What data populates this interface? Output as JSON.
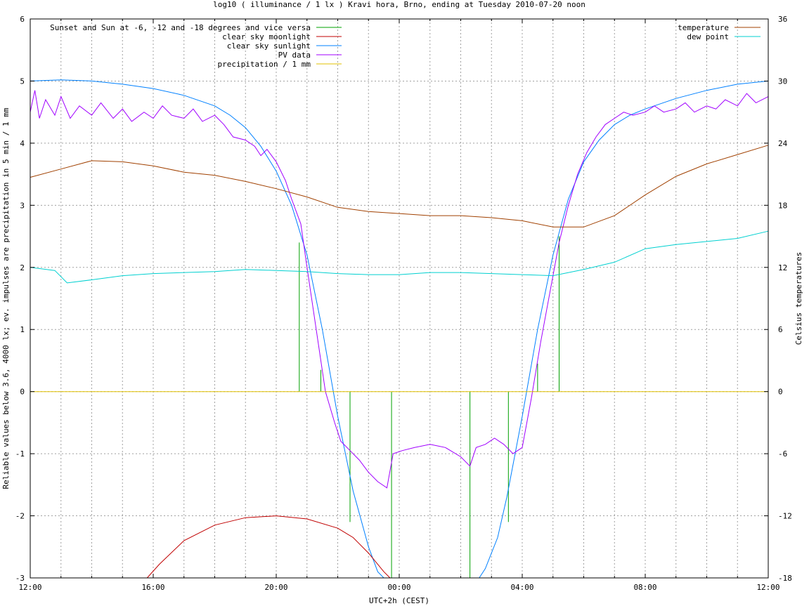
{
  "chart_data": {
    "type": "line",
    "title": "log10 ( illuminance / 1 lx ) Kravi hora, Brno, ending at Tuesday 2010-07-20 noon",
    "xlabel": "UTC+2h (CEST)",
    "ylabel": "Reliable values below 3.6, 4000 lx; ev. impulses are precipitation in 5 min / 1 mm",
    "y2label": "Celsius temperatures",
    "x_unit": "hours since 12:00",
    "xlim": [
      0,
      24
    ],
    "ylim": [
      -3,
      6
    ],
    "y2lim": [
      -18,
      36
    ],
    "grid": true,
    "x_ticks": [
      "12:00",
      "16:00",
      "20:00",
      "00:00",
      "04:00",
      "08:00",
      "12:00"
    ],
    "y_ticks": [
      "-3",
      "-2",
      "-1",
      "0",
      "1",
      "2",
      "3",
      "4",
      "5",
      "6"
    ],
    "y2_ticks": [
      "-18",
      "-12",
      "-6",
      "0",
      "6",
      "12",
      "18",
      "24",
      "30",
      "36"
    ],
    "legend_left": [
      {
        "name": "Sunset and Sun at -6, -12 and -18 degrees and vice versa",
        "color": "#00a000"
      },
      {
        "name": "clear sky moonlight",
        "color": "#c00000"
      },
      {
        "name": "clear sky sunlight",
        "color": "#0080ff"
      },
      {
        "name": "PV data",
        "color": "#a000ff"
      },
      {
        "name": "precipitation / 1 mm",
        "color": "#e0c000"
      }
    ],
    "legend_right": [
      {
        "name": "temperature",
        "color": "#a04000"
      },
      {
        "name": "dew point",
        "color": "#00d0d0"
      }
    ],
    "sun_events": [
      {
        "x": 8.75,
        "top": 2.4
      },
      {
        "x": 9.45,
        "top": 0.35
      },
      {
        "x": 10.4,
        "top": -2.1
      },
      {
        "x": 11.75,
        "top": -3
      },
      {
        "x": 14.3,
        "top": -3
      },
      {
        "x": 15.55,
        "top": -2.1
      },
      {
        "x": 16.5,
        "top": 0.45
      },
      {
        "x": 17.2,
        "top": 2.5
      }
    ],
    "series": [
      {
        "name": "clear sky sunlight",
        "color": "#0080ff",
        "points": [
          [
            0,
            5.0
          ],
          [
            1,
            5.02
          ],
          [
            2,
            5.0
          ],
          [
            3,
            4.95
          ],
          [
            4,
            4.88
          ],
          [
            5,
            4.77
          ],
          [
            6,
            4.6
          ],
          [
            6.5,
            4.45
          ],
          [
            7,
            4.25
          ],
          [
            7.5,
            3.95
          ],
          [
            8,
            3.55
          ],
          [
            8.5,
            3.0
          ],
          [
            9,
            2.2
          ],
          [
            9.5,
            1.0
          ],
          [
            10,
            -0.4
          ],
          [
            10.5,
            -1.6
          ],
          [
            11,
            -2.5
          ],
          [
            11.3,
            -2.9
          ],
          [
            11.5,
            -3.1
          ],
          [
            14.6,
            -3.1
          ],
          [
            14.8,
            -2.85
          ],
          [
            15.2,
            -2.35
          ],
          [
            15.5,
            -1.7
          ],
          [
            16,
            -0.4
          ],
          [
            16.5,
            1.0
          ],
          [
            17,
            2.2
          ],
          [
            17.5,
            3.1
          ],
          [
            18,
            3.7
          ],
          [
            18.5,
            4.05
          ],
          [
            19,
            4.3
          ],
          [
            19.5,
            4.45
          ],
          [
            20,
            4.55
          ],
          [
            21,
            4.72
          ],
          [
            22,
            4.85
          ],
          [
            23,
            4.95
          ],
          [
            24,
            5.0
          ]
        ]
      },
      {
        "name": "clear sky moonlight",
        "color": "#c00000",
        "points": [
          [
            3.8,
            -3.1
          ],
          [
            4.2,
            -2.78
          ],
          [
            5,
            -2.4
          ],
          [
            6,
            -2.15
          ],
          [
            7,
            -2.03
          ],
          [
            8,
            -2.0
          ],
          [
            9,
            -2.05
          ],
          [
            10,
            -2.2
          ],
          [
            10.5,
            -2.35
          ],
          [
            11,
            -2.6
          ],
          [
            11.5,
            -2.9
          ],
          [
            11.7,
            -3.1
          ]
        ]
      },
      {
        "name": "PV data",
        "color": "#a000ff",
        "points": [
          [
            0,
            4.5
          ],
          [
            0.15,
            4.85
          ],
          [
            0.3,
            4.4
          ],
          [
            0.5,
            4.7
          ],
          [
            0.8,
            4.45
          ],
          [
            1,
            4.75
          ],
          [
            1.3,
            4.4
          ],
          [
            1.6,
            4.6
          ],
          [
            2,
            4.45
          ],
          [
            2.3,
            4.65
          ],
          [
            2.7,
            4.4
          ],
          [
            3,
            4.55
          ],
          [
            3.3,
            4.35
          ],
          [
            3.7,
            4.5
          ],
          [
            4,
            4.4
          ],
          [
            4.3,
            4.6
          ],
          [
            4.6,
            4.45
          ],
          [
            5,
            4.4
          ],
          [
            5.3,
            4.55
          ],
          [
            5.6,
            4.35
          ],
          [
            6,
            4.45
          ],
          [
            6.3,
            4.3
          ],
          [
            6.6,
            4.1
          ],
          [
            7,
            4.05
          ],
          [
            7.3,
            3.95
          ],
          [
            7.5,
            3.8
          ],
          [
            7.7,
            3.9
          ],
          [
            8,
            3.7
          ],
          [
            8.3,
            3.4
          ],
          [
            8.5,
            3.1
          ],
          [
            8.8,
            2.7
          ],
          [
            9,
            2.0
          ],
          [
            9.3,
            1.0
          ],
          [
            9.6,
            0.0
          ],
          [
            9.9,
            -0.5
          ],
          [
            10.1,
            -0.8
          ],
          [
            10.4,
            -0.95
          ],
          [
            10.7,
            -1.1
          ],
          [
            11,
            -1.3
          ],
          [
            11.3,
            -1.45
          ],
          [
            11.6,
            -1.55
          ],
          [
            11.8,
            -1.0
          ],
          [
            12.1,
            -0.95
          ],
          [
            12.5,
            -0.9
          ],
          [
            13,
            -0.85
          ],
          [
            13.5,
            -0.9
          ],
          [
            14,
            -1.05
          ],
          [
            14.3,
            -1.2
          ],
          [
            14.5,
            -0.9
          ],
          [
            14.8,
            -0.85
          ],
          [
            15.1,
            -0.75
          ],
          [
            15.4,
            -0.85
          ],
          [
            15.7,
            -1.0
          ],
          [
            16,
            -0.9
          ],
          [
            16.3,
            -0.1
          ],
          [
            16.6,
            0.8
          ],
          [
            16.9,
            1.6
          ],
          [
            17.2,
            2.4
          ],
          [
            17.5,
            3.0
          ],
          [
            17.8,
            3.5
          ],
          [
            18.1,
            3.85
          ],
          [
            18.4,
            4.1
          ],
          [
            18.7,
            4.3
          ],
          [
            19,
            4.4
          ],
          [
            19.3,
            4.5
          ],
          [
            19.6,
            4.45
          ],
          [
            20,
            4.5
          ],
          [
            20.3,
            4.6
          ],
          [
            20.6,
            4.5
          ],
          [
            21,
            4.55
          ],
          [
            21.3,
            4.65
          ],
          [
            21.6,
            4.5
          ],
          [
            22,
            4.6
          ],
          [
            22.3,
            4.55
          ],
          [
            22.6,
            4.7
          ],
          [
            23,
            4.6
          ],
          [
            23.3,
            4.8
          ],
          [
            23.6,
            4.65
          ],
          [
            24,
            4.75
          ]
        ]
      },
      {
        "name": "precipitation / 1 mm",
        "color": "#e0c000",
        "points": [
          [
            0,
            0
          ],
          [
            24,
            0
          ]
        ]
      },
      {
        "name": "temperature",
        "color": "#a04000",
        "axis": "y2",
        "points": [
          [
            0,
            20.7
          ],
          [
            1,
            21.5
          ],
          [
            2,
            22.3
          ],
          [
            3,
            22.2
          ],
          [
            4,
            21.8
          ],
          [
            5,
            21.2
          ],
          [
            6,
            20.9
          ],
          [
            7,
            20.3
          ],
          [
            8,
            19.6
          ],
          [
            9,
            18.8
          ],
          [
            10,
            17.8
          ],
          [
            11,
            17.4
          ],
          [
            12,
            17.2
          ],
          [
            13,
            17.0
          ],
          [
            14,
            17.0
          ],
          [
            15,
            16.8
          ],
          [
            16,
            16.5
          ],
          [
            17,
            15.9
          ],
          [
            18,
            15.9
          ],
          [
            19,
            17.0
          ],
          [
            20,
            19.0
          ],
          [
            21,
            20.8
          ],
          [
            22,
            22.0
          ],
          [
            23,
            22.9
          ],
          [
            24,
            23.8
          ]
        ]
      },
      {
        "name": "dew point",
        "color": "#00d0d0",
        "axis": "y2",
        "points": [
          [
            0,
            12.0
          ],
          [
            0.8,
            11.7
          ],
          [
            1.2,
            10.5
          ],
          [
            2,
            10.8
          ],
          [
            3,
            11.2
          ],
          [
            4,
            11.4
          ],
          [
            5,
            11.5
          ],
          [
            6,
            11.6
          ],
          [
            7,
            11.8
          ],
          [
            8,
            11.7
          ],
          [
            9,
            11.6
          ],
          [
            10,
            11.4
          ],
          [
            11,
            11.3
          ],
          [
            12,
            11.3
          ],
          [
            13,
            11.5
          ],
          [
            14,
            11.5
          ],
          [
            15,
            11.4
          ],
          [
            16,
            11.3
          ],
          [
            17,
            11.2
          ],
          [
            18,
            11.8
          ],
          [
            19,
            12.5
          ],
          [
            20,
            13.8
          ],
          [
            21,
            14.2
          ],
          [
            22,
            14.5
          ],
          [
            23,
            14.8
          ],
          [
            24,
            15.5
          ]
        ]
      }
    ]
  }
}
